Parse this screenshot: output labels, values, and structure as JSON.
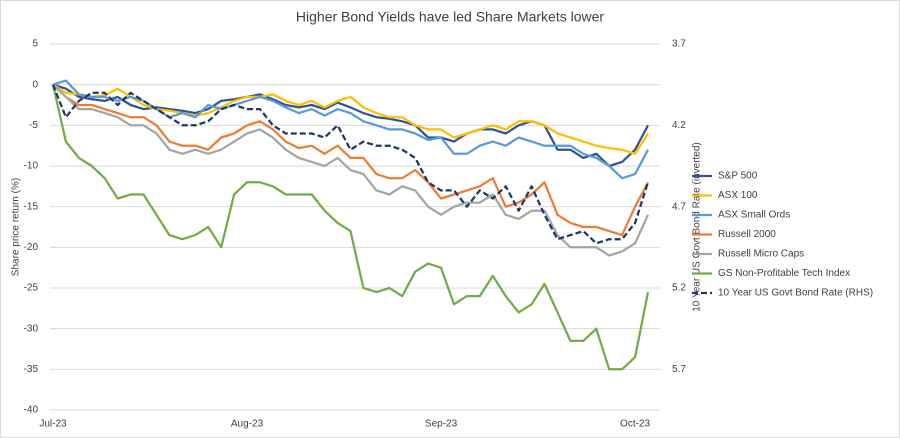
{
  "chart_data": {
    "type": "line",
    "title": "Higher Bond Yields have led Share Markets lower",
    "ylabel": "Share price return (%)",
    "y2label": "10 Year US Govt Bond Rate (inverted)",
    "categories": [
      "Jul-23",
      null,
      null,
      null,
      null,
      null,
      null,
      null,
      null,
      null,
      null,
      null,
      null,
      null,
      null,
      "Aug-23",
      null,
      null,
      null,
      null,
      null,
      null,
      null,
      null,
      null,
      null,
      null,
      null,
      null,
      null,
      "Sep-23",
      null,
      null,
      null,
      null,
      null,
      null,
      null,
      null,
      null,
      null,
      null,
      null,
      null,
      null,
      "Oct-23",
      null
    ],
    "ylim": [
      5,
      -40
    ],
    "yticks": [
      5,
      0,
      -5,
      -10,
      -15,
      -20,
      -25,
      -30,
      -35,
      -40
    ],
    "y2lim": [
      3.7,
      5.95
    ],
    "y2ticks": [
      3.7,
      4.2,
      4.7,
      5.2,
      5.7
    ],
    "y2_inverted": true,
    "grid": true,
    "legend_position": "right",
    "series": [
      {
        "name": "S&P 500",
        "color": "#2f5597",
        "values": [
          0,
          -0.5,
          -1.5,
          -1.8,
          -2,
          -1.5,
          -2.5,
          -3,
          -2.8,
          -3,
          -3.2,
          -3.5,
          -3,
          -2,
          -1.8,
          -1.5,
          -1.2,
          -1.8,
          -2.5,
          -2.8,
          -2.5,
          -3,
          -2.2,
          -2.8,
          -3.5,
          -4,
          -4.2,
          -4.5,
          -5,
          -6.5,
          -6.5,
          -7,
          -6,
          -5.5,
          -5.5,
          -6,
          -5,
          -4.5,
          -5,
          -8,
          -8,
          -9,
          -8.5,
          -10,
          -9.5,
          -8,
          -5
        ]
      },
      {
        "name": "ASX 100",
        "color": "#ffc000",
        "values": [
          0,
          -1,
          -1.2,
          -1.5,
          -1.3,
          -0.5,
          -1.5,
          -2.5,
          -3,
          -3.2,
          -3.5,
          -3.8,
          -3.5,
          -2.8,
          -2,
          -1.5,
          -1.5,
          -1.2,
          -2,
          -2.5,
          -2,
          -2.8,
          -2,
          -1.5,
          -2.8,
          -3.5,
          -4,
          -4,
          -5,
          -5.5,
          -5.5,
          -6.5,
          -6,
          -5.5,
          -5,
          -5.5,
          -4.5,
          -4.5,
          -5,
          -6,
          -6.5,
          -7,
          -7.5,
          -7.8,
          -8,
          -8.5,
          -6
        ]
      },
      {
        "name": "ASX Small Ords",
        "color": "#5b9bd5",
        "values": [
          0,
          0.5,
          -1.2,
          -1.5,
          -1.5,
          -2,
          -1.5,
          -2,
          -3,
          -4,
          -3.5,
          -4,
          -2.5,
          -3,
          -2.5,
          -2,
          -1.5,
          -2,
          -2.8,
          -3.5,
          -3,
          -3.8,
          -3,
          -3.5,
          -4.5,
          -5,
          -5.5,
          -5.5,
          -6,
          -6.8,
          -6.5,
          -8.5,
          -8.5,
          -7.5,
          -7,
          -7.5,
          -6.5,
          -7,
          -7.5,
          -7.5,
          -7.5,
          -8.5,
          -9,
          -10,
          -11.5,
          -11,
          -8
        ]
      },
      {
        "name": "Russell 2000",
        "color": "#ed7d31",
        "values": [
          0,
          -1.5,
          -2.5,
          -2.5,
          -3,
          -3.5,
          -4,
          -4,
          -5,
          -7,
          -7.5,
          -7.5,
          -8,
          -6.5,
          -6,
          -5,
          -4.5,
          -5.5,
          -7,
          -7.8,
          -7.5,
          -8.5,
          -7.5,
          -9,
          -9,
          -11,
          -11.5,
          -11.5,
          -10.5,
          -12,
          -14,
          -13.5,
          -13,
          -12.5,
          -11.5,
          -15,
          -14.5,
          -13.5,
          -12,
          -16,
          -17,
          -17.5,
          -17.5,
          -18,
          -18.5,
          -15,
          -12
        ]
      },
      {
        "name": "Russell Micro Caps",
        "color": "#a5a5a5",
        "values": [
          0,
          -1.5,
          -3,
          -3,
          -3.5,
          -4,
          -5,
          -5,
          -6,
          -8,
          -8.5,
          -8,
          -8.5,
          -8,
          -7,
          -6,
          -5.5,
          -6.5,
          -8,
          -9,
          -9.5,
          -10,
          -9,
          -10.5,
          -11,
          -13,
          -13.5,
          -12.5,
          -13,
          -15,
          -16,
          -15,
          -14.5,
          -14.5,
          -13.5,
          -16,
          -16.5,
          -15.5,
          -15.5,
          -18.5,
          -20,
          -20,
          -20,
          -21,
          -20.5,
          -19.5,
          -16
        ]
      },
      {
        "name": "GS Non-Profitable Tech Index",
        "color": "#70ad47",
        "values": [
          0,
          -7,
          -9,
          -10,
          -11.5,
          -14,
          -13.5,
          -13.5,
          -16,
          -18.5,
          -19,
          -18.5,
          -17.5,
          -20,
          -13.5,
          -12,
          -12,
          -12.5,
          -13.5,
          -13.5,
          -13.5,
          -15.5,
          -17,
          -18,
          -25,
          -25.5,
          -25,
          -26,
          -23,
          -22,
          -22.5,
          -27,
          -26,
          -26,
          -23.5,
          -26,
          -28,
          -27,
          -24.5,
          -28,
          -31.5,
          -31.5,
          -30,
          -35,
          -35,
          -33.5,
          -25.5
        ]
      },
      {
        "name": "10 Year US Govt Bond Rate (RHS)",
        "color": "#1f3864",
        "dashed": true,
        "axis": "y2",
        "values": [
          3.95,
          4.15,
          4.05,
          4.0,
          4.0,
          4.075,
          4.0,
          4.05,
          4.1,
          4.15,
          4.2,
          4.2,
          4.175,
          4.1,
          4.075,
          4.1,
          4.1,
          4.2,
          4.25,
          4.25,
          4.25,
          4.275,
          4.2,
          4.35,
          4.3,
          4.325,
          4.325,
          4.35,
          4.4,
          4.55,
          4.6,
          4.6,
          4.7,
          4.6,
          4.65,
          4.575,
          4.725,
          4.575,
          4.75,
          4.9,
          4.875,
          4.85,
          4.925,
          4.9,
          4.9,
          4.8,
          4.55
        ]
      }
    ]
  }
}
